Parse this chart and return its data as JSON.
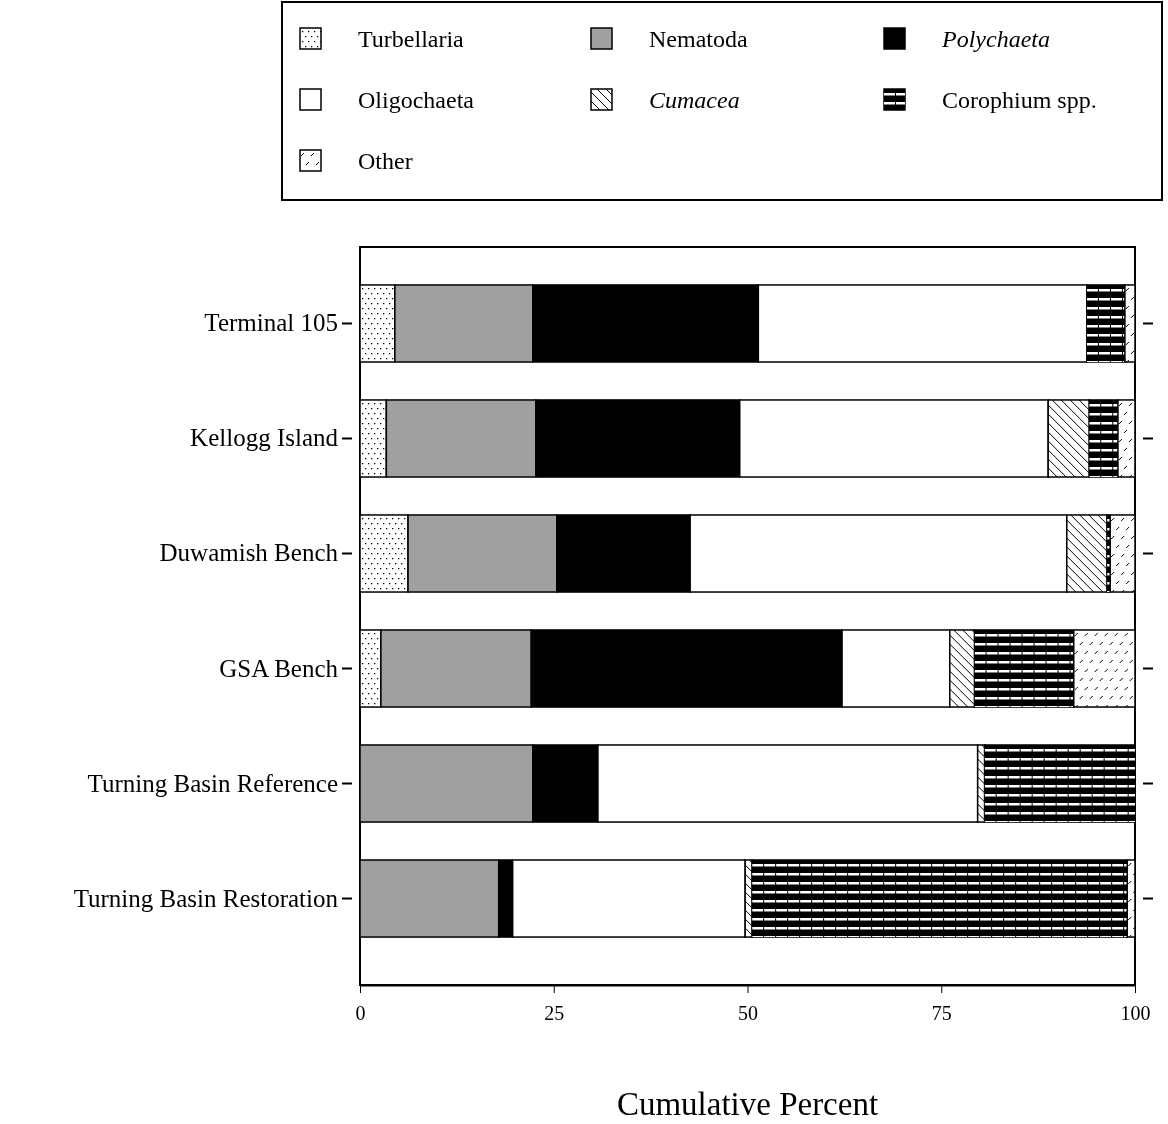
{
  "chart_data": {
    "type": "bar",
    "orientation": "horizontal",
    "stacked": true,
    "xlabel": "Cumulative Percent",
    "categories": [
      "Terminal 105",
      "Kellogg Island",
      "Duwamish Bench",
      "GSA Bench",
      "Turning Basin Reference",
      "Turning Basin Restoration"
    ],
    "xlim": [
      0,
      100
    ],
    "xticks": [
      0,
      25,
      50,
      75,
      100
    ],
    "legend": "top",
    "series": [
      {
        "name": "Turbellaria",
        "color": "#ffffff",
        "values": [
          4.5,
          3.4,
          6.2,
          2.7,
          0,
          0
        ]
      },
      {
        "name": "Nematoda",
        "color": "#a0a0a0",
        "values": [
          17.8,
          19.3,
          19.2,
          19.4,
          22.3,
          17.9
        ]
      },
      {
        "name": "Polychaeta",
        "color": "#000000",
        "values": [
          29.1,
          26.3,
          17.2,
          40.1,
          8.4,
          1.8
        ]
      },
      {
        "name": "Oligochaeta",
        "color": "#ffffff",
        "values": [
          42.4,
          39.8,
          48.6,
          13.9,
          49.0,
          30.0
        ]
      },
      {
        "name": "Cumacea",
        "color": "#ffffff",
        "values": [
          0,
          5.3,
          5.2,
          3.2,
          0.9,
          0.9
        ]
      },
      {
        "name": "Corophium spp.",
        "color": "#000000",
        "values": [
          4.9,
          3.7,
          0.4,
          12.8,
          19.4,
          48.4
        ]
      },
      {
        "name": "Other",
        "color": "#ffffff",
        "values": [
          1.3,
          2.2,
          3.2,
          7.9,
          0,
          1.0
        ]
      }
    ]
  }
}
